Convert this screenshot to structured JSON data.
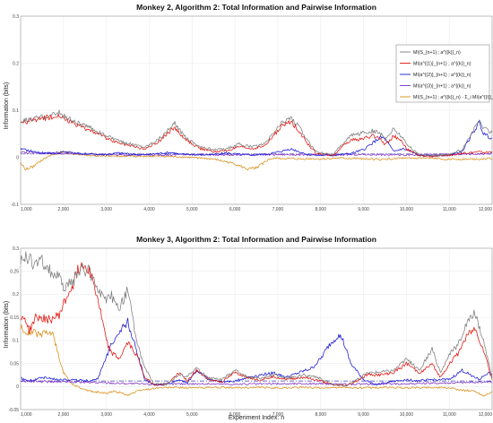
{
  "chart_data": [
    {
      "type": "line",
      "title": "Monkey 2, Algorithm 2: Total Information and Pairwise Information",
      "xlabel": "",
      "ylabel": "Information (bits)",
      "xlim": [
        1000,
        12000
      ],
      "ylim": [
        -0.1,
        0.3
      ],
      "xticks": [
        "1,000",
        "2,000",
        "3,000",
        "4,000",
        "5,000",
        "6,000",
        "7,000",
        "8,000",
        "9,000",
        "10,000",
        "11,000",
        "12,000"
      ],
      "yticks": [
        "-0.1",
        "0",
        "0.1",
        "0.2",
        "0.3"
      ],
      "grid": true,
      "legend_position": "top-right",
      "reference_line_y": 0.007,
      "series": [
        {
          "name": "MI(S_{n+1} ; a^{(k)}_n)",
          "color": "#7d7d7d",
          "x": [
            1000,
            1300,
            1600,
            1900,
            2000,
            2300,
            2700,
            3000,
            3300,
            3600,
            3900,
            4200,
            4500,
            4600,
            4700,
            4900,
            5200,
            5500,
            5800,
            6100,
            6400,
            6700,
            6900,
            7100,
            7300,
            7500,
            7700,
            7900,
            8300,
            8500,
            8700,
            9000,
            9200,
            9400,
            9500,
            9700,
            9900,
            10000,
            10300,
            10600,
            10800,
            11000,
            11300,
            11500,
            11700,
            11800,
            12000
          ],
          "values": [
            0.076,
            0.082,
            0.088,
            0.094,
            0.088,
            0.074,
            0.06,
            0.045,
            0.034,
            0.028,
            0.022,
            0.038,
            0.062,
            0.072,
            0.058,
            0.04,
            0.022,
            0.016,
            0.018,
            0.028,
            0.022,
            0.028,
            0.052,
            0.074,
            0.085,
            0.064,
            0.034,
            0.012,
            0.006,
            0.028,
            0.046,
            0.052,
            0.056,
            0.05,
            0.038,
            0.06,
            0.044,
            0.028,
            0.005,
            0.004,
            0.005,
            0.006,
            0.016,
            0.048,
            0.078,
            0.062,
            0.052
          ]
        },
        {
          "name": "MI(a^{(1)}_{n+1} ; a^{(k)}_n)",
          "color": "#e3120b",
          "x": [
            1000,
            1300,
            1600,
            1900,
            2000,
            2300,
            2700,
            3000,
            3300,
            3600,
            3900,
            4200,
            4500,
            4600,
            4700,
            4900,
            5200,
            5500,
            5800,
            6100,
            6400,
            6700,
            6900,
            7100,
            7300,
            7500,
            7700,
            7900,
            8300,
            8500,
            8700,
            9000,
            9200,
            9400,
            9500,
            9700,
            9900,
            10000,
            10300,
            10600,
            10800,
            11000,
            11300,
            11500,
            11700,
            11800,
            12000
          ],
          "values": [
            0.072,
            0.078,
            0.084,
            0.09,
            0.082,
            0.068,
            0.055,
            0.04,
            0.03,
            0.024,
            0.018,
            0.032,
            0.056,
            0.064,
            0.05,
            0.034,
            0.018,
            0.012,
            0.014,
            0.022,
            0.018,
            0.024,
            0.046,
            0.066,
            0.076,
            0.056,
            0.028,
            0.008,
            0.004,
            0.022,
            0.036,
            0.04,
            0.045,
            0.04,
            0.026,
            0.046,
            0.034,
            0.018,
            0.003,
            0.002,
            0.003,
            0.004,
            0.008,
            0.01,
            0.012,
            0.01,
            0.012
          ]
        },
        {
          "name": "MI(a^{(2)}_{n+1} ; a^{(k)}_n)",
          "color": "#1717d6",
          "x": [
            1000,
            1300,
            1600,
            1900,
            2000,
            2300,
            2700,
            3000,
            3300,
            3600,
            3900,
            4200,
            4500,
            4600,
            4700,
            4900,
            5200,
            5500,
            5800,
            6100,
            6400,
            6700,
            6900,
            7100,
            7300,
            7500,
            7700,
            7900,
            8300,
            8500,
            8700,
            9000,
            9200,
            9400,
            9500,
            9700,
            9900,
            10000,
            10300,
            10600,
            10800,
            11000,
            11300,
            11500,
            11700,
            11800,
            12000
          ],
          "values": [
            0.018,
            0.012,
            0.008,
            0.01,
            0.012,
            0.009,
            0.006,
            0.006,
            0.009,
            0.007,
            0.005,
            0.008,
            0.01,
            0.009,
            0.006,
            0.006,
            0.005,
            0.006,
            0.009,
            0.006,
            0.005,
            0.006,
            0.009,
            0.013,
            0.018,
            0.012,
            0.006,
            0.004,
            0.004,
            0.006,
            0.008,
            0.016,
            0.03,
            0.042,
            0.04,
            0.012,
            0.018,
            0.016,
            0.004,
            0.003,
            0.004,
            0.005,
            0.012,
            0.044,
            0.074,
            0.05,
            0.04
          ]
        },
        {
          "name": "MI(a^{(3)}_{n+1} ; a^{(k)}_n)",
          "color": "#7b2cc4",
          "x": [
            1000,
            2000,
            3000,
            4000,
            5000,
            6000,
            7000,
            8000,
            9000,
            10000,
            11000,
            12000
          ],
          "values": [
            0.01,
            0.008,
            0.006,
            0.005,
            0.006,
            0.005,
            0.006,
            0.005,
            0.006,
            0.005,
            0.006,
            0.008
          ]
        },
        {
          "name": "MI(S_{n+1} ; a^{(k)}_n) - Σ_i MI(a^{(i)}_{n+1} ; a^{(k)}_n)",
          "color": "#d98d15",
          "x": [
            1000,
            1100,
            1300,
            1500,
            1700,
            2000,
            2300,
            2700,
            3000,
            3300,
            3600,
            4000,
            4300,
            4600,
            4900,
            5200,
            5500,
            5800,
            6000,
            6300,
            6500,
            6800,
            7000,
            7200,
            7500,
            7800,
            8000,
            8400,
            8800,
            9000,
            9400,
            9800,
            10000,
            10400,
            10800,
            11000,
            11500,
            12000
          ],
          "values": [
            -0.01,
            -0.026,
            -0.02,
            -0.006,
            0.004,
            0.012,
            0.006,
            0.003,
            0.003,
            0.002,
            0.002,
            0.002,
            0.002,
            0.001,
            0,
            -0.002,
            -0.004,
            -0.01,
            -0.014,
            -0.026,
            -0.022,
            -0.004,
            -0.002,
            -0.003,
            -0.004,
            -0.003,
            -0.004,
            -0.002,
            -0.003,
            -0.003,
            -0.005,
            -0.002,
            -0.003,
            -0.002,
            -0.003,
            -0.004,
            -0.004,
            -0.003
          ]
        }
      ]
    },
    {
      "type": "line",
      "title": "Monkey 3, Algorithm 2: Total Information and Pairwise Information",
      "xlabel": "Experiment Index: n",
      "ylabel": "Information (bits)",
      "xlim": [
        1000,
        12000
      ],
      "ylim": [
        -0.05,
        0.3
      ],
      "xticks": [
        "1,000",
        "2,000",
        "3,000",
        "4,000",
        "5,000",
        "6,000",
        "7,000",
        "8,000",
        "9,000",
        "10,000",
        "11,000",
        "12,000"
      ],
      "yticks": [
        "-0.05",
        "0",
        "0.05",
        "0.1",
        "0.15",
        "0.2",
        "0.25",
        "0.3"
      ],
      "grid": true,
      "reference_line_y": 0.012,
      "series": [
        {
          "name": "MI(S_{n+1} ; a^{(k)}_n)",
          "color": "#7d7d7d",
          "x": [
            1000,
            1100,
            1200,
            1350,
            1500,
            1700,
            1900,
            2000,
            2200,
            2400,
            2600,
            2800,
            3000,
            3100,
            3300,
            3500,
            3700,
            3900,
            4100,
            4400,
            4700,
            4900,
            5100,
            5400,
            5700,
            6000,
            6300,
            6600,
            6900,
            7200,
            7600,
            8000,
            8300,
            8600,
            8800,
            9100,
            9400,
            9700,
            10000,
            10300,
            10600,
            10800,
            11000,
            11200,
            11400,
            11600,
            11800,
            12000
          ],
          "values": [
            0.268,
            0.282,
            0.276,
            0.265,
            0.272,
            0.25,
            0.236,
            0.215,
            0.226,
            0.255,
            0.25,
            0.215,
            0.18,
            0.2,
            0.17,
            0.21,
            0.1,
            0.04,
            0.006,
            0.005,
            0.025,
            0.022,
            0.04,
            0.018,
            0.015,
            0.035,
            0.02,
            0.018,
            0.025,
            0.018,
            0.025,
            0.018,
            0.004,
            0.002,
            0.012,
            0.03,
            0.032,
            0.035,
            0.06,
            0.035,
            0.08,
            0.03,
            0.07,
            0.09,
            0.135,
            0.16,
            0.1,
            0.02
          ]
        },
        {
          "name": "MI(a^{(1)}_{n+1} ; a^{(k)}_n)",
          "color": "#e3120b",
          "x": [
            1000,
            1100,
            1200,
            1350,
            1500,
            1700,
            1900,
            2000,
            2200,
            2400,
            2600,
            2800,
            3000,
            3100,
            3300,
            3500,
            3700,
            3900,
            4100,
            4400,
            4700,
            4900,
            5100,
            5400,
            5700,
            6000,
            6300,
            6600,
            6900,
            7200,
            7600,
            8000,
            8300,
            8600,
            8800,
            9100,
            9400,
            9700,
            10000,
            10300,
            10600,
            10800,
            11000,
            11200,
            11400,
            11600,
            11800,
            12000
          ],
          "values": [
            0.145,
            0.15,
            0.12,
            0.15,
            0.148,
            0.145,
            0.155,
            0.178,
            0.218,
            0.265,
            0.258,
            0.19,
            0.1,
            0.075,
            0.06,
            0.095,
            0.07,
            0.02,
            0.004,
            0.004,
            0.03,
            0.012,
            0.035,
            0.015,
            0.01,
            0.03,
            0.02,
            0.014,
            0.022,
            0.015,
            0.02,
            0.012,
            0.003,
            0.002,
            0.01,
            0.026,
            0.025,
            0.03,
            0.05,
            0.03,
            0.048,
            0.02,
            0.05,
            0.07,
            0.11,
            0.125,
            0.08,
            0.015
          ]
        },
        {
          "name": "MI(a^{(2)}_{n+1} ; a^{(k)}_n)",
          "color": "#1717d6",
          "x": [
            1000,
            1200,
            1500,
            1800,
            2000,
            2300,
            2600,
            2800,
            2950,
            3100,
            3300,
            3500,
            3700,
            3900,
            4100,
            4400,
            4700,
            4900,
            5100,
            5400,
            5700,
            6000,
            6300,
            6600,
            6900,
            7200,
            7500,
            7800,
            8000,
            8200,
            8400,
            8500,
            8700,
            9000,
            9300,
            9600,
            10000,
            10300,
            10600,
            11000,
            11300,
            11500,
            11700,
            11900,
            12000
          ],
          "values": [
            0.018,
            0.012,
            0.02,
            0.016,
            0.016,
            0.014,
            0.012,
            0.018,
            0.05,
            0.09,
            0.12,
            0.14,
            0.08,
            0.015,
            0.004,
            0.004,
            0.015,
            0.008,
            0.035,
            0.015,
            0.01,
            0.012,
            0.02,
            0.025,
            0.03,
            0.02,
            0.03,
            0.04,
            0.06,
            0.09,
            0.11,
            0.105,
            0.05,
            0.015,
            0.004,
            0.01,
            0.015,
            0.012,
            0.015,
            0.015,
            0.035,
            0.025,
            0.015,
            0.03,
            0.025
          ]
        },
        {
          "name": "MI(a^{(3)}_{n+1} ; a^{(k)}_n)",
          "color": "#7b2cc4",
          "x": [
            1000,
            2000,
            3000,
            4000,
            5000,
            6000,
            7000,
            8000,
            9000,
            10000,
            11000,
            12000
          ],
          "values": [
            0.012,
            0.01,
            0.008,
            0.005,
            0.006,
            0.005,
            0.006,
            0.006,
            0.005,
            0.006,
            0.008,
            0.01
          ]
        },
        {
          "name": "MI(S_{n+1} ; a^{(k)}_n) - Σ_i MI(a^{(i)}_{n+1} ; a^{(k)}_n)",
          "color": "#d98d15",
          "x": [
            1000,
            1150,
            1300,
            1450,
            1600,
            1750,
            1850,
            1900,
            2000,
            2200,
            2500,
            2800,
            3000,
            3200,
            3500,
            3800,
            4200,
            4600,
            5000,
            5500,
            6000,
            6500,
            7000,
            7500,
            8000,
            8500,
            9000,
            9500,
            10000,
            10500,
            11000,
            11300,
            11600,
            11800,
            12000
          ],
          "values": [
            0.128,
            0.118,
            0.12,
            0.11,
            0.12,
            0.112,
            0.08,
            0.06,
            0.03,
            0.005,
            -0.008,
            -0.012,
            -0.015,
            -0.01,
            -0.018,
            -0.008,
            -0.003,
            -0.002,
            -0.003,
            -0.002,
            -0.003,
            -0.002,
            -0.003,
            -0.002,
            -0.003,
            -0.002,
            -0.003,
            -0.002,
            -0.003,
            -0.002,
            -0.003,
            -0.008,
            -0.01,
            -0.02,
            -0.01
          ]
        }
      ]
    }
  ]
}
